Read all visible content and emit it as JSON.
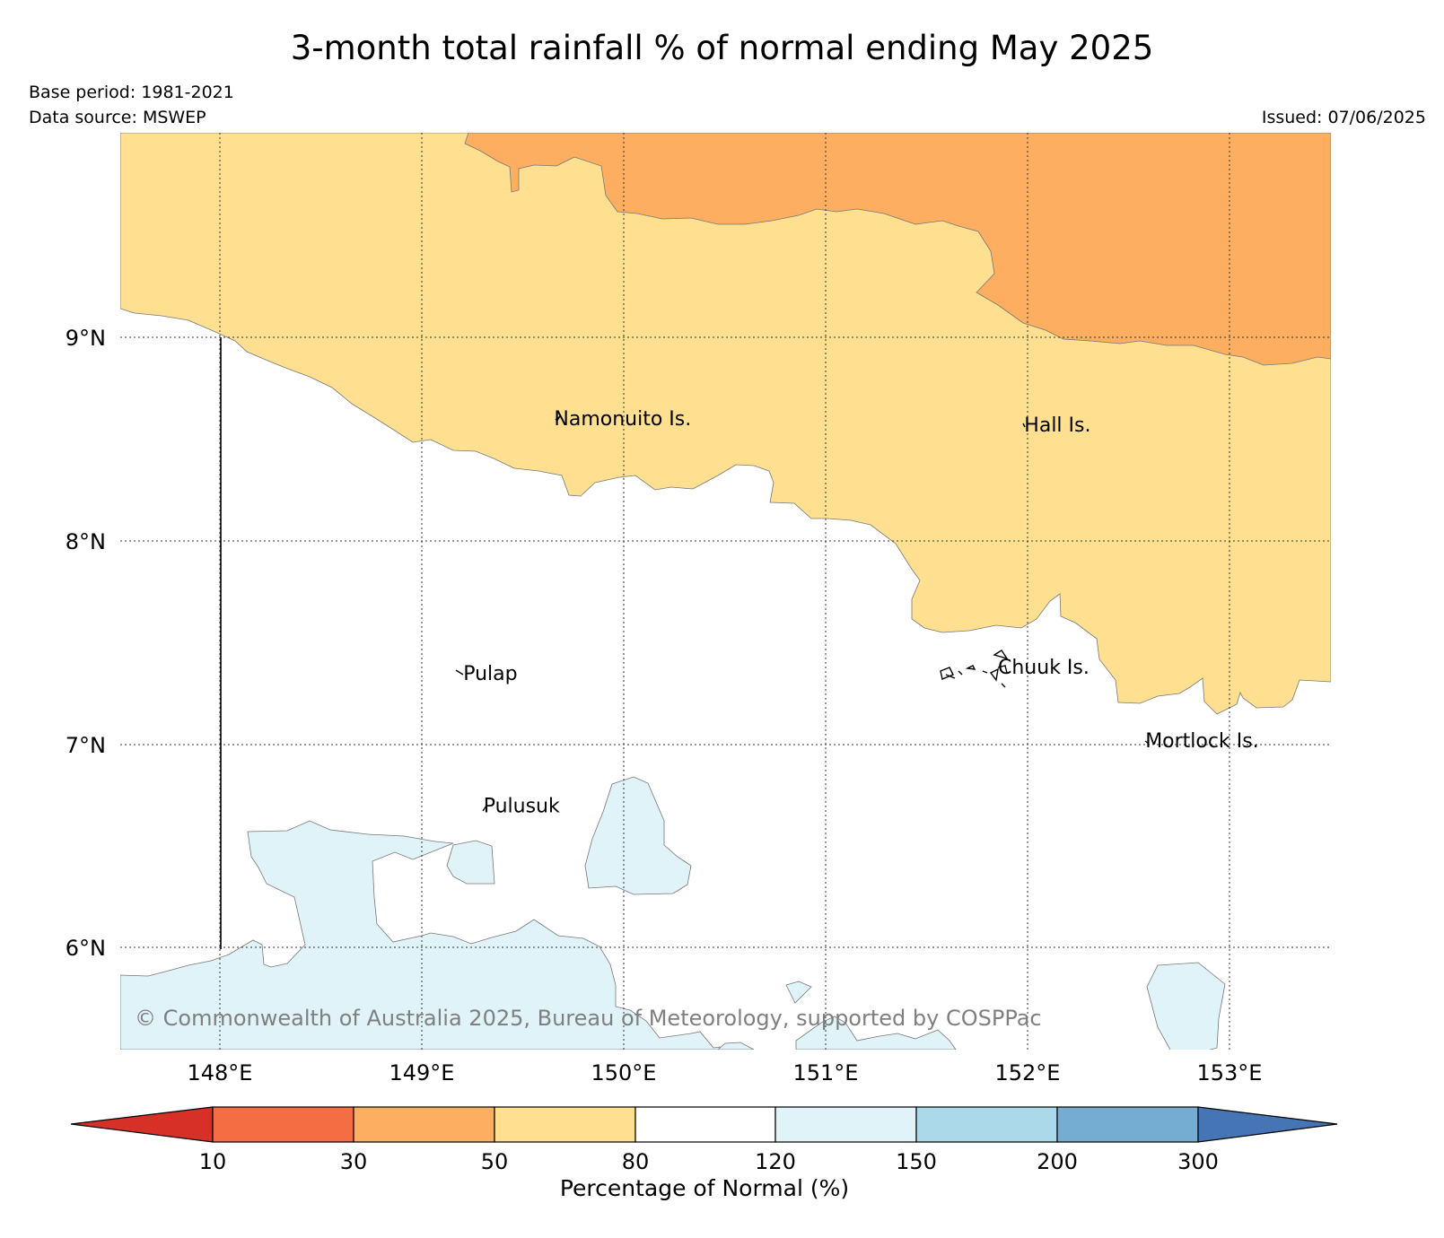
{
  "title": "3-month total rainfall % of normal ending May 2025",
  "base_period": "Base period: 1981-2021",
  "data_source": "Data source: MSWEP",
  "issued": "Issued: 07/06/2025",
  "copyright": "© Commonwealth of Australia 2025, Bureau of Meteorology, supported by COSPPac",
  "map": {
    "lon_range": [
      147.5,
      153.5
    ],
    "lat_range": [
      5.5,
      10.0
    ],
    "lon_labels": [
      "148°E",
      "149°E",
      "150°E",
      "151°E",
      "152°E",
      "153°E"
    ],
    "lat_labels": [
      "9°N",
      "8°N",
      "7°N",
      "6°N"
    ],
    "places": [
      {
        "name": "Namonuito Is.",
        "lon": 149.65,
        "lat": 8.6
      },
      {
        "name": "Hall Is.",
        "lon": 151.98,
        "lat": 8.57
      },
      {
        "name": "Pulap",
        "lon": 149.2,
        "lat": 7.35
      },
      {
        "name": "Chuuk Is.",
        "lon": 151.85,
        "lat": 7.38
      },
      {
        "name": "Mortlock Is.",
        "lon": 152.58,
        "lat": 7.02
      },
      {
        "name": "Pulusuk",
        "lon": 149.3,
        "lat": 6.7
      }
    ]
  },
  "colorbar": {
    "title": "Percentage of Normal (%)",
    "ticks": [
      "10",
      "30",
      "50",
      "80",
      "120",
      "150",
      "200",
      "300"
    ],
    "colors": {
      "below_10": "#d73027",
      "10_30": "#f46d43",
      "30_50": "#fdae61",
      "50_80": "#fee090",
      "80_120": "#ffffff",
      "120_150": "#e0f3f8",
      "150_200": "#abd9e9",
      "200_300": "#74add1",
      "above_300": "#4575b4"
    }
  }
}
